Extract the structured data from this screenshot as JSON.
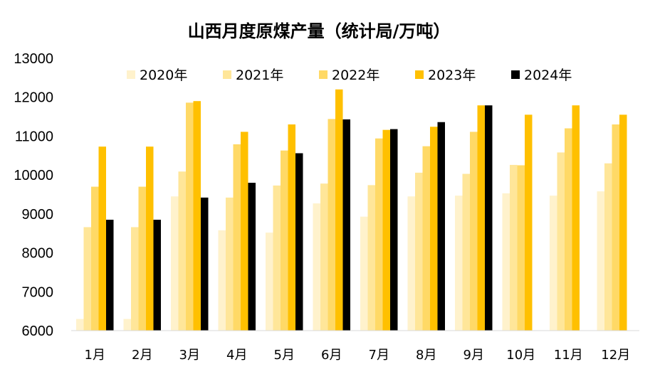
{
  "chart_data": {
    "type": "bar",
    "title": "山西月度原煤产量（统计局/万吨）",
    "xlabel": "",
    "ylabel": "",
    "categories": [
      "1月",
      "2月",
      "3月",
      "4月",
      "5月",
      "6月",
      "7月",
      "8月",
      "9月",
      "10月",
      "11月",
      "12月"
    ],
    "ylim": [
      6000,
      13000
    ],
    "yticks": [
      6000,
      7000,
      8000,
      9000,
      10000,
      11000,
      12000,
      13000
    ],
    "grid": false,
    "legend_position": "top",
    "series": [
      {
        "name": "2020年",
        "color": "#FFF2CC",
        "values": [
          6300,
          6300,
          9450,
          8580,
          8520,
          9270,
          8930,
          9450,
          9470,
          9530,
          9470,
          9580
        ]
      },
      {
        "name": "2021年",
        "color": "#FFE699",
        "values": [
          8660,
          8660,
          10090,
          9420,
          9730,
          9780,
          9740,
          10060,
          10030,
          10260,
          10580,
          10300
        ]
      },
      {
        "name": "2022年",
        "color": "#FFD966",
        "values": [
          9700,
          9700,
          11860,
          10790,
          10630,
          11440,
          10940,
          10740,
          11110,
          10250,
          11200,
          11300
        ]
      },
      {
        "name": "2023年",
        "color": "#FFC000",
        "values": [
          10730,
          10730,
          11900,
          11110,
          11300,
          12200,
          11160,
          11240,
          11790,
          11550,
          11790,
          11550
        ]
      },
      {
        "name": "2024年",
        "color": "#000000",
        "values": [
          8850,
          8850,
          9420,
          9800,
          10560,
          11430,
          11180,
          11360,
          11790,
          null,
          null,
          null
        ]
      }
    ]
  }
}
